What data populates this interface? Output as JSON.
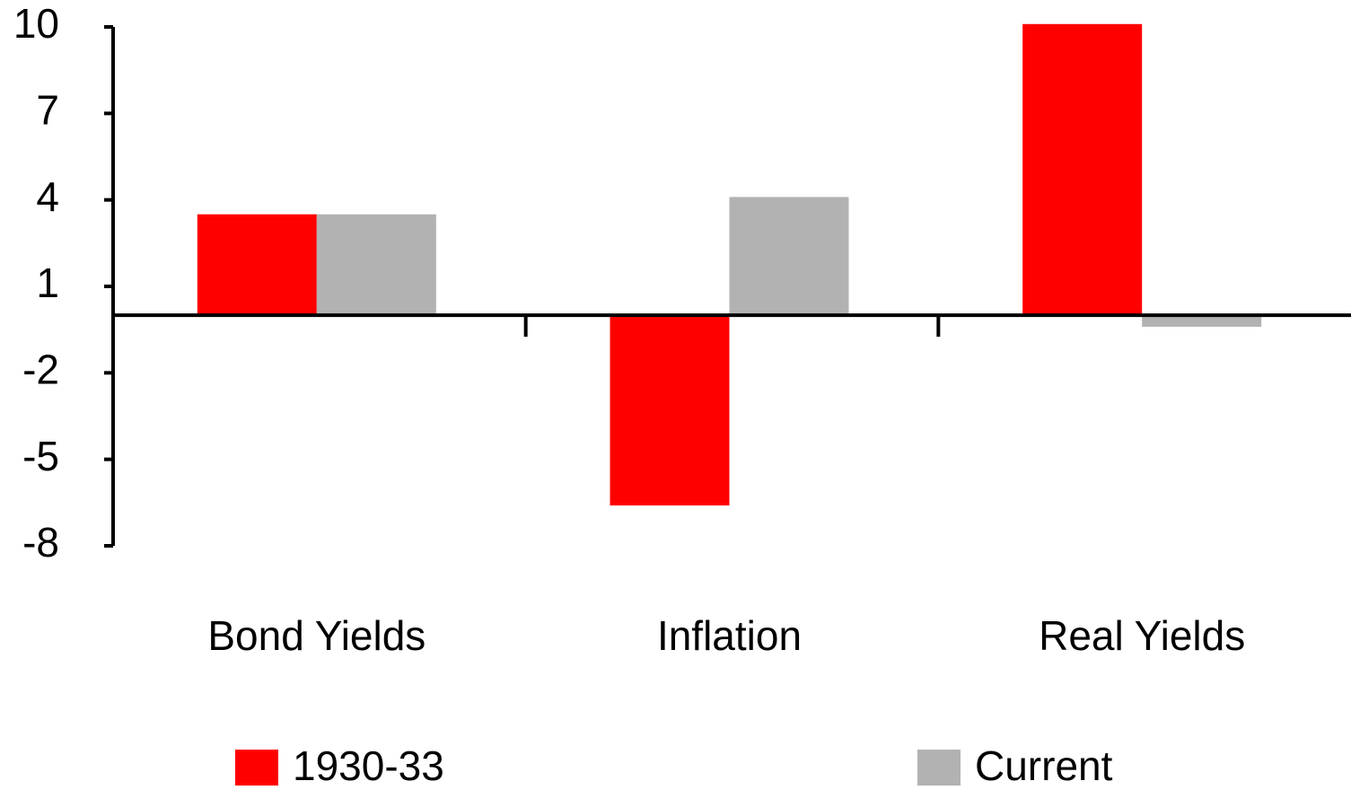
{
  "chart_data": {
    "type": "bar",
    "categories": [
      "Bond Yields",
      "Inflation",
      "Real Yields"
    ],
    "series": [
      {
        "name": "1930-33",
        "color": "#ff0000",
        "values": [
          3.5,
          -6.6,
          10.1
        ]
      },
      {
        "name": "Current",
        "color": "#b2b2b2",
        "values": [
          3.5,
          4.1,
          -0.4
        ]
      }
    ],
    "ylim": [
      -8,
      10
    ],
    "yticks": [
      10,
      7,
      4,
      1,
      -2,
      -5,
      -8
    ],
    "legend": "bottom"
  }
}
